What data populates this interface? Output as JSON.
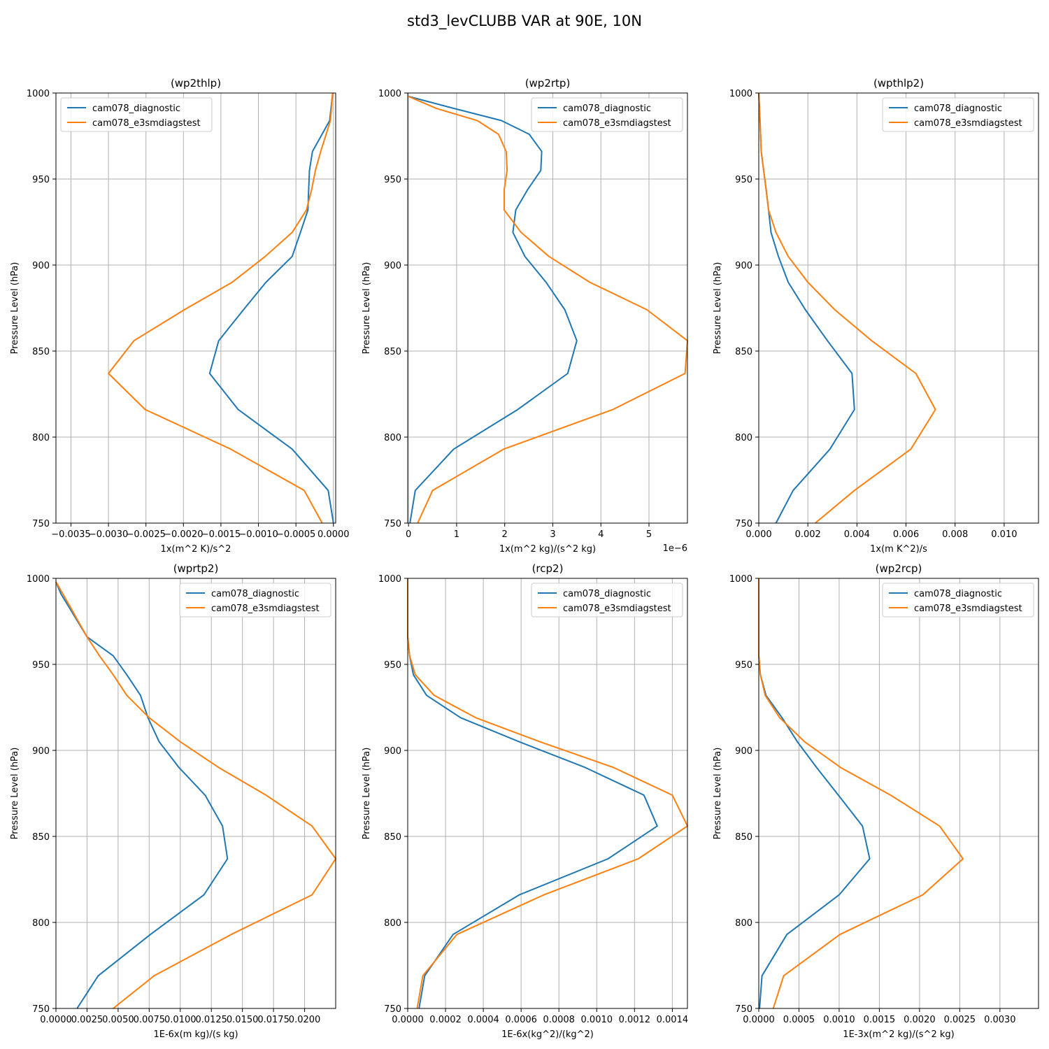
{
  "figure": {
    "title": "std3_levCLUBB VAR at 90E, 10N",
    "series_colors": [
      "#1f77b4",
      "#ff7f0e"
    ],
    "grid_color": "#b0b0b0"
  },
  "chart_data": [
    {
      "type": "line",
      "title": "(wp2thlp)",
      "xlabel": "1x(m^2 K)/s^2",
      "ylabel": "Pressure Level (hPa)",
      "xlim": [
        -0.0037,
        3e-05
      ],
      "ylim": [
        1000,
        750
      ],
      "x_ticks": [
        -0.0035,
        -0.003,
        -0.0025,
        -0.002,
        -0.0015,
        -0.001,
        -0.0005,
        0.0
      ],
      "x_tick_labels": [
        "−0.0035",
        "−0.0030",
        "−0.0025",
        "−0.0020",
        "−0.0015",
        "−0.0010",
        "−0.0005",
        "0.0000"
      ],
      "y_ticks": [
        750,
        800,
        850,
        900,
        950,
        1000
      ],
      "y_tick_labels": [
        "750",
        "800",
        "850",
        "900",
        "950",
        "1000"
      ],
      "offset_label": "",
      "grid": true,
      "legend_position": "upper left",
      "series": [
        {
          "name": "cam078_diagnostic",
          "x": [
            0.0,
            -7e-05,
            -0.00055,
            -0.00127,
            -0.00165,
            -0.00153,
            -0.0012,
            -0.0009,
            -0.00055,
            -0.00044,
            -0.00034,
            -0.00033,
            -0.00032,
            -0.00028,
            -5e-05,
            -1e-05
          ],
          "y": [
            750,
            769,
            793,
            816,
            837,
            856,
            874,
            890,
            905,
            919,
            932,
            944,
            955,
            966,
            984,
            1000
          ]
        },
        {
          "name": "cam078_e3smdiagstest",
          "x": [
            -0.00015,
            -0.00039,
            -0.00137,
            -0.00251,
            -0.003,
            -0.00266,
            -0.00199,
            -0.00135,
            -0.00091,
            -0.00055,
            -0.00036,
            -0.00029,
            -0.00024,
            -0.00017,
            -4e-05,
            -1e-05
          ],
          "y": [
            750,
            769,
            793,
            816,
            837,
            856,
            874,
            890,
            905,
            919,
            932,
            944,
            955,
            966,
            984,
            1000
          ]
        }
      ]
    },
    {
      "type": "line",
      "title": "(wp2rtp)",
      "xlabel": "1x(m^2 kg)/(s^2 kg)",
      "ylabel": "Pressure Level (hPa)",
      "xlim": [
        -1.7e-08,
        5.8e-06
      ],
      "ylim": [
        1000,
        750
      ],
      "x_ticks": [
        0.0,
        1e-06,
        2e-06,
        3e-06,
        4e-06,
        5e-06
      ],
      "x_tick_labels": [
        "0",
        "1",
        "2",
        "3",
        "4",
        "5"
      ],
      "y_ticks": [
        750,
        800,
        850,
        900,
        950,
        1000
      ],
      "y_tick_labels": [
        "750",
        "800",
        "850",
        "900",
        "950",
        "1000"
      ],
      "offset_label": "1e−6",
      "grid": true,
      "legend_position": "upper right",
      "series": [
        {
          "name": "cam078_diagnostic",
          "x": [
            3e-08,
            1.4e-07,
            9.4e-07,
            2.27e-06,
            3.31e-06,
            3.5e-06,
            3.25e-06,
            2.86e-06,
            2.42e-06,
            2.17e-06,
            2.23e-06,
            2.48e-06,
            2.75e-06,
            2.77e-06,
            2.51e-06,
            1.93e-06,
            9.5e-07,
            0.0
          ],
          "y": [
            750,
            769,
            793,
            816,
            837,
            856,
            874,
            890,
            905,
            919,
            932,
            944,
            955,
            966,
            976,
            984,
            991,
            998
          ]
        },
        {
          "name": "cam078_e3smdiagstest",
          "x": [
            1.9e-07,
            5e-07,
            1.98e-06,
            4.25e-06,
            5.75e-06,
            5.8e-06,
            4.96e-06,
            3.77e-06,
            2.92e-06,
            2.34e-06,
            1.99e-06,
            1.99e-06,
            2.05e-06,
            2.03e-06,
            1.87e-06,
            1.43e-06,
            5.8e-07,
            0.0
          ],
          "y": [
            750,
            769,
            793,
            816,
            837,
            856,
            874,
            890,
            905,
            919,
            932,
            944,
            955,
            966,
            976,
            984,
            991,
            998
          ]
        }
      ]
    },
    {
      "type": "line",
      "title": "(wpthlp2)",
      "xlabel": "1x(m K^2)/s",
      "ylabel": "Pressure Level (hPa)",
      "xlim": [
        0.0,
        0.0114
      ],
      "ylim": [
        1000,
        750
      ],
      "x_ticks": [
        0.0,
        0.002,
        0.004,
        0.006,
        0.008,
        0.01
      ],
      "x_tick_labels": [
        "0.000",
        "0.002",
        "0.004",
        "0.006",
        "0.008",
        "0.010"
      ],
      "y_ticks": [
        750,
        800,
        850,
        900,
        950,
        1000
      ],
      "y_tick_labels": [
        "750",
        "800",
        "850",
        "900",
        "950",
        "1000"
      ],
      "offset_label": "",
      "grid": true,
      "legend_position": "upper right",
      "series": [
        {
          "name": "cam078_diagnostic",
          "x": [
            0.0007,
            0.0014,
            0.0029,
            0.0039,
            0.0038,
            0.0028,
            0.0019,
            0.0012,
            0.0008,
            0.0005,
            0.0004,
            0.0003,
            0.0002,
            0.0001,
            5e-05,
            0.0
          ],
          "y": [
            750,
            769,
            793,
            816,
            837,
            856,
            874,
            890,
            905,
            919,
            932,
            944,
            955,
            966,
            984,
            1000
          ]
        },
        {
          "name": "cam078_e3smdiagstest",
          "x": [
            0.0023,
            0.0039,
            0.0062,
            0.0072,
            0.0064,
            0.0046,
            0.0031,
            0.002,
            0.0012,
            0.0007,
            0.0004,
            0.0003,
            0.0002,
            0.0001,
            5e-05,
            0.0
          ],
          "y": [
            750,
            769,
            793,
            816,
            837,
            856,
            874,
            890,
            905,
            919,
            932,
            944,
            955,
            966,
            984,
            1000
          ]
        }
      ]
    },
    {
      "type": "line",
      "title": "(wprtp2)",
      "xlabel": "1E-6x(m kg)/(s kg)",
      "ylabel": "Pressure Level (hPa)",
      "xlim": [
        0.0,
        0.0225
      ],
      "ylim": [
        1000,
        750
      ],
      "x_ticks": [
        0.0,
        0.0025,
        0.005,
        0.0075,
        0.01,
        0.0125,
        0.015,
        0.0175,
        0.02
      ],
      "x_tick_labels": [
        "0.0000",
        "0.0025",
        "0.0050",
        "0.0075",
        "0.0100",
        "0.0125",
        "0.0150",
        "0.0175",
        "0.0200"
      ],
      "y_ticks": [
        750,
        800,
        850,
        900,
        950,
        1000
      ],
      "y_tick_labels": [
        "750",
        "800",
        "850",
        "900",
        "950",
        "1000"
      ],
      "offset_label": "",
      "grid": true,
      "legend_position": "upper right",
      "series": [
        {
          "name": "cam078_diagnostic",
          "x": [
            0.0017,
            0.0034,
            0.0076,
            0.0119,
            0.0138,
            0.0134,
            0.012,
            0.0099,
            0.0083,
            0.0074,
            0.0068,
            0.0057,
            0.0046,
            0.0025,
            0.0004,
            0.0
          ],
          "y": [
            750,
            769,
            793,
            816,
            837,
            856,
            874,
            890,
            905,
            919,
            932,
            944,
            955,
            966,
            991,
            998
          ]
        },
        {
          "name": "cam078_e3smdiagstest",
          "x": [
            0.0046,
            0.0079,
            0.0141,
            0.0206,
            0.0225,
            0.0206,
            0.0169,
            0.0131,
            0.01,
            0.0075,
            0.0057,
            0.0046,
            0.0035,
            0.0025,
            0.0011,
            0.0
          ],
          "y": [
            750,
            769,
            793,
            816,
            837,
            856,
            874,
            890,
            905,
            919,
            932,
            944,
            955,
            966,
            984,
            998
          ]
        }
      ]
    },
    {
      "type": "line",
      "title": "(rcp2)",
      "xlabel": "1E-6x(kg^2)/(kg^2)",
      "ylabel": "Pressure Level (hPa)",
      "xlim": [
        0.0,
        0.00148
      ],
      "ylim": [
        1000,
        750
      ],
      "x_ticks": [
        0.0,
        0.0002,
        0.0004,
        0.0006,
        0.0008,
        0.001,
        0.0012,
        0.0014
      ],
      "x_tick_labels": [
        "0.0000",
        "0.0002",
        "0.0004",
        "0.0006",
        "0.0008",
        "0.0010",
        "0.0012",
        "0.0014"
      ],
      "y_ticks": [
        750,
        800,
        850,
        900,
        950,
        1000
      ],
      "y_tick_labels": [
        "750",
        "800",
        "850",
        "900",
        "950",
        "1000"
      ],
      "offset_label": "",
      "grid": true,
      "legend_position": "upper right",
      "series": [
        {
          "name": "cam078_diagnostic",
          "x": [
            6e-05,
            9e-05,
            0.00024,
            0.00059,
            0.00106,
            0.00132,
            0.00125,
            0.00094,
            0.00059,
            0.00028,
            0.0001,
            3e-05,
            1e-05,
            0.0,
            0.0,
            0.0
          ],
          "y": [
            750,
            769,
            793,
            816,
            837,
            856,
            874,
            890,
            905,
            919,
            932,
            944,
            955,
            966,
            984,
            1000
          ]
        },
        {
          "name": "cam078_e3smdiagstest",
          "x": [
            5e-05,
            8e-05,
            0.00026,
            0.00072,
            0.00122,
            0.00148,
            0.0014,
            0.00109,
            0.0007,
            0.00036,
            0.00014,
            4e-05,
            1e-05,
            0.0,
            0.0,
            0.0
          ],
          "y": [
            750,
            769,
            793,
            816,
            837,
            856,
            874,
            890,
            905,
            919,
            932,
            944,
            955,
            966,
            984,
            1000
          ]
        }
      ]
    },
    {
      "type": "line",
      "title": "(wp2rcp)",
      "xlabel": "1E-3x(m^2 kg)/(s^2 kg)",
      "ylabel": "Pressure Level (hPa)",
      "xlim": [
        0.0,
        0.00348
      ],
      "ylim": [
        1000,
        750
      ],
      "x_ticks": [
        0.0,
        0.0005,
        0.001,
        0.0015,
        0.002,
        0.0025,
        0.003
      ],
      "x_tick_labels": [
        "0.0000",
        "0.0005",
        "0.0010",
        "0.0015",
        "0.0020",
        "0.0025",
        "0.0030"
      ],
      "y_ticks": [
        750,
        800,
        850,
        900,
        950,
        1000
      ],
      "y_tick_labels": [
        "750",
        "800",
        "850",
        "900",
        "950",
        "1000"
      ],
      "offset_label": "",
      "grid": true,
      "legend_position": "upper right",
      "series": [
        {
          "name": "cam078_diagnostic",
          "x": [
            1e-05,
            4e-05,
            0.00035,
            0.001,
            0.00138,
            0.00129,
            0.00099,
            0.00072,
            0.00048,
            0.00029,
            9e-05,
            2e-05,
            0.0,
            0.0,
            0.0,
            0.0
          ],
          "y": [
            750,
            769,
            793,
            816,
            837,
            856,
            874,
            890,
            905,
            919,
            932,
            944,
            955,
            966,
            984,
            1000
          ]
        },
        {
          "name": "cam078_e3smdiagstest",
          "x": [
            0.00018,
            0.00031,
            0.00101,
            0.00204,
            0.00254,
            0.00225,
            0.00164,
            0.00102,
            0.00057,
            0.00026,
            8e-05,
            2e-05,
            0.0,
            0.0,
            0.0,
            0.0
          ],
          "y": [
            750,
            769,
            793,
            816,
            837,
            856,
            874,
            890,
            905,
            919,
            932,
            944,
            955,
            966,
            984,
            1000
          ]
        }
      ]
    }
  ]
}
